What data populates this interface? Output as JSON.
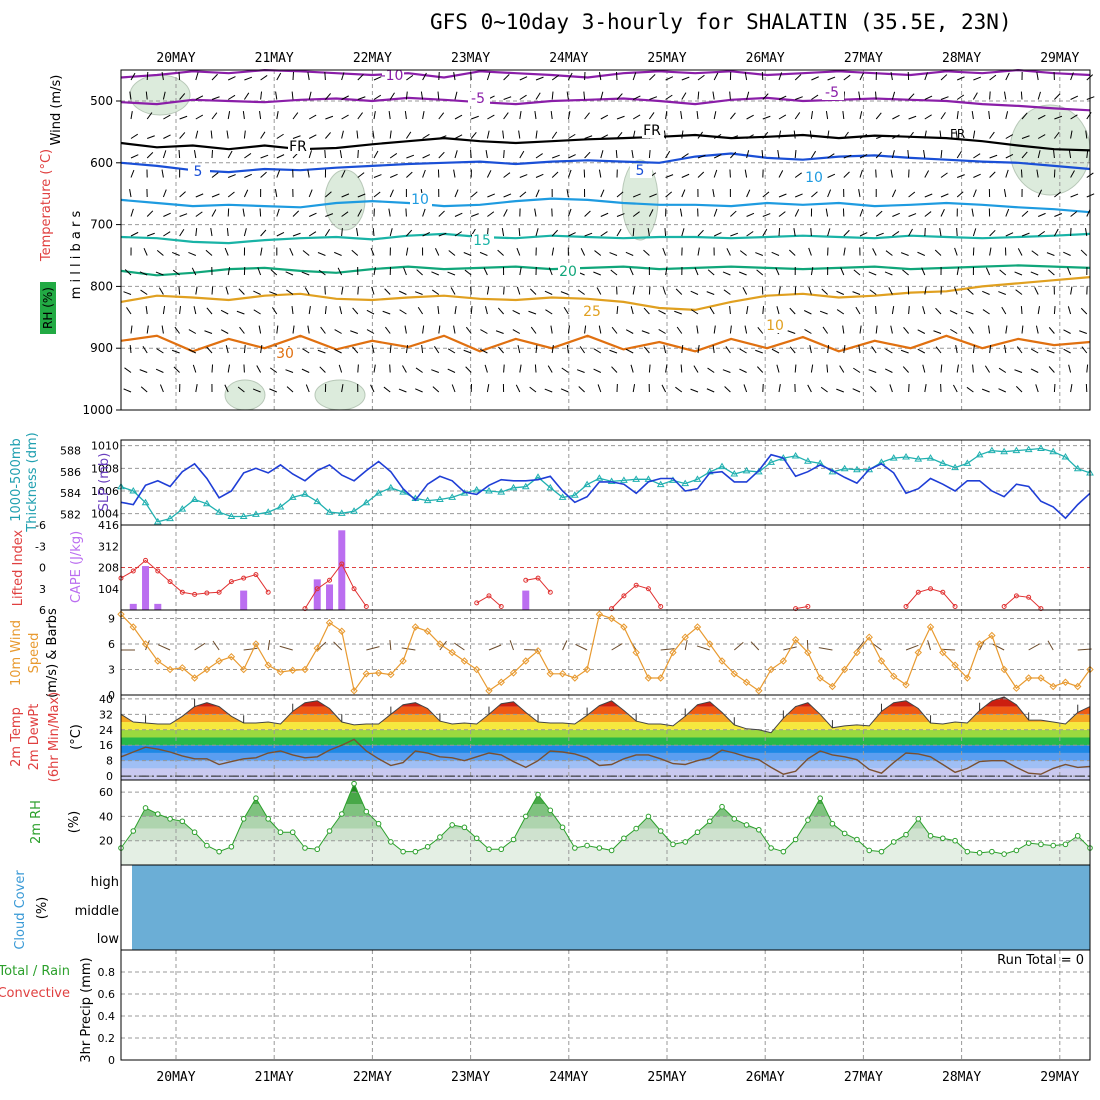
{
  "title": "GFS 0~10day 3-hourly for SHALATIN (35.5E, 23N)",
  "chart_data": [
    {
      "type": "contour",
      "panel": "upper-air",
      "ylabels": [
        "Wind (m/s)",
        "Temperature (°C)",
        "m i l l i b a r s",
        "RH (%)"
      ],
      "yticks": [
        500,
        600,
        700,
        800,
        900,
        1000
      ],
      "contour_labels": [
        "-10",
        "-5",
        "FR",
        "5",
        "10",
        "15",
        "20",
        "25",
        "30",
        "-5",
        "FR",
        "5",
        "10",
        "10"
      ],
      "isotherms": [
        {
          "label": "-10",
          "color": "#8a1ea8",
          "levels": [
            462,
            458,
            452,
            455,
            450,
            452,
            455,
            458,
            455,
            462,
            452,
            455,
            458,
            462,
            455,
            452,
            455,
            452,
            458,
            455,
            452,
            455,
            458,
            452,
            455,
            450,
            455,
            458
          ]
        },
        {
          "label": "-5",
          "color": "#8a1ea8",
          "levels": [
            502,
            505,
            498,
            500,
            502,
            498,
            496,
            500,
            495,
            498,
            502,
            505,
            500,
            498,
            496,
            500,
            505,
            498,
            495,
            500,
            498,
            496,
            498,
            500,
            505,
            508,
            512,
            515
          ]
        },
        {
          "label": "FR",
          "color": "#000000",
          "levels": [
            568,
            575,
            572,
            578,
            572,
            578,
            576,
            570,
            565,
            560,
            565,
            568,
            565,
            562,
            560,
            558,
            555,
            560,
            558,
            555,
            560,
            556,
            558,
            560,
            565,
            572,
            578,
            580
          ]
        },
        {
          "label": "5",
          "color": "#1a4fd6",
          "levels": [
            600,
            605,
            612,
            615,
            610,
            612,
            608,
            605,
            602,
            600,
            598,
            602,
            598,
            596,
            598,
            600,
            590,
            585,
            592,
            595,
            590,
            588,
            592,
            595,
            598,
            600,
            605,
            610
          ]
        },
        {
          "label": "10",
          "color": "#1e9be0",
          "levels": [
            660,
            665,
            670,
            668,
            670,
            672,
            665,
            662,
            665,
            670,
            668,
            662,
            658,
            660,
            665,
            668,
            668,
            670,
            665,
            668,
            665,
            670,
            668,
            665,
            668,
            672,
            675,
            680
          ]
        },
        {
          "label": "15",
          "color": "#19b3a6",
          "levels": [
            720,
            722,
            728,
            730,
            725,
            722,
            720,
            724,
            718,
            715,
            720,
            722,
            718,
            720,
            722,
            720,
            720,
            722,
            720,
            718,
            720,
            722,
            718,
            720,
            722,
            720,
            718,
            715
          ]
        },
        {
          "label": "20",
          "color": "#10a67a",
          "levels": [
            775,
            782,
            778,
            772,
            770,
            775,
            778,
            772,
            768,
            772,
            770,
            768,
            772,
            770,
            768,
            772,
            770,
            768,
            770,
            772,
            770,
            768,
            772,
            770,
            768,
            766,
            768,
            770
          ]
        },
        {
          "label": "25",
          "color": "#e0a020",
          "levels": [
            825,
            815,
            818,
            822,
            815,
            812,
            820,
            822,
            818,
            815,
            820,
            822,
            818,
            820,
            825,
            835,
            838,
            825,
            815,
            812,
            818,
            815,
            810,
            808,
            800,
            795,
            790,
            785
          ]
        },
        {
          "label": "30",
          "color": "#e07010",
          "levels": [
            888,
            880,
            905,
            885,
            900,
            880,
            902,
            888,
            898,
            880,
            905,
            885,
            900,
            880,
            902,
            890,
            905,
            885,
            900,
            882,
            905,
            888,
            900,
            880,
            900,
            885,
            895,
            890
          ]
        }
      ]
    },
    {
      "type": "line",
      "panel": "slp-thickness",
      "ylabels": [
        "SLP (mb)",
        "1000-500mb",
        "Thickness (dm)"
      ],
      "yticks_left": [
        582,
        584,
        586,
        588
      ],
      "yticks_right": [
        1004,
        1006,
        1008,
        1010
      ],
      "series": [
        {
          "name": "SLP",
          "color": "#1f3ed6",
          "ylim": [
            1003,
            1010.5
          ],
          "values": [
            1005.0,
            1004.8,
            1006.5,
            1006.9,
            1006.4,
            1007.7,
            1008.4,
            1007.1,
            1005.4,
            1006.0,
            1007.6,
            1008.0,
            1007.6,
            1008.3,
            1007.5,
            1006.9,
            1007.8,
            1008.3,
            1007.4,
            1006.9,
            1007.8,
            1008.6,
            1007.7,
            1006.2,
            1005.2,
            1006.6,
            1007.3,
            1006.9,
            1005.9,
            1005.7,
            1006.5,
            1007.0,
            1006.9,
            1006.9,
            1007.0,
            1007.3,
            1006.0,
            1005.0,
            1005.5,
            1006.8,
            1006.8,
            1006.6,
            1005.8,
            1006.8,
            1007.1,
            1007.1,
            1006.0,
            1006.2,
            1007.6,
            1007.7,
            1006.8,
            1006.8,
            1007.8,
            1009.2,
            1008.9,
            1007.3,
            1007.7,
            1008.3,
            1007.8,
            1007.2,
            1006.7,
            1007.9,
            1008.4,
            1007.6,
            1005.8,
            1006.2,
            1007.1,
            1006.6,
            1006.0,
            1006.9,
            1006.9,
            1006.0,
            1005.5,
            1006.6,
            1006.4,
            1005.1,
            1004.6,
            1003.6,
            1004.8,
            1005.8
          ]
        },
        {
          "name": "Thickness",
          "color": "#20b0b0",
          "ylim": [
            581,
            589
          ],
          "values": [
            584.6,
            584.2,
            583.1,
            581.3,
            581.6,
            582.5,
            583.4,
            583.0,
            582.2,
            581.8,
            581.8,
            582.0,
            582.2,
            582.7,
            583.6,
            583.9,
            583.2,
            582.2,
            582.1,
            582.3,
            583.1,
            584.0,
            584.5,
            584.1,
            583.5,
            583.3,
            583.4,
            583.6,
            584.0,
            584.3,
            584.2,
            584.1,
            584.5,
            584.6,
            585.5,
            584.5,
            583.6,
            583.8,
            584.8,
            585.4,
            585.1,
            585.2,
            585.3,
            585.3,
            584.8,
            585.2,
            584.9,
            585.3,
            586.0,
            586.5,
            585.8,
            586.1,
            586.0,
            586.9,
            587.3,
            587.5,
            587.0,
            586.8,
            586.0,
            586.3,
            586.2,
            586.2,
            586.9,
            587.3,
            587.4,
            587.2,
            587.3,
            586.8,
            586.4,
            586.8,
            587.6,
            588.0,
            587.9,
            588.0,
            588.1,
            588.2,
            587.9,
            587.4,
            586.3,
            585.9
          ]
        }
      ]
    },
    {
      "type": "bar+line",
      "panel": "lifted-index-cape",
      "ylabels": [
        "Lifted Index",
        "CAPE (J/kg)"
      ],
      "yticks_left": [
        "-6",
        "-3",
        "0",
        "3",
        "6"
      ],
      "yticks_right": [
        "104",
        "208",
        "312",
        "416"
      ],
      "cape": {
        "color": "#bb6ef0",
        "ylim": [
          0,
          416
        ],
        "bars": [
          {
            "i": 1,
            "v": 30
          },
          {
            "i": 2,
            "v": 215
          },
          {
            "i": 3,
            "v": 30
          },
          {
            "i": 10,
            "v": 95
          },
          {
            "i": 16,
            "v": 150
          },
          {
            "i": 17,
            "v": 125
          },
          {
            "i": 18,
            "v": 390
          },
          {
            "i": 33,
            "v": 95
          }
        ]
      },
      "lifted_index": {
        "color": "#e03030",
        "ylim": [
          -6,
          6
        ],
        "values": [
          1.5,
          0.5,
          -1.0,
          0.5,
          2.0,
          3.5,
          3.8,
          3.6,
          3.5,
          2.0,
          1.5,
          1.0,
          3.5,
          null,
          null,
          5.8,
          3.0,
          1.8,
          -0.5,
          3.0,
          5.5,
          null,
          null,
          null,
          null,
          null,
          null,
          null,
          null,
          5.0,
          4.0,
          5.5,
          null,
          1.8,
          1.5,
          3.5,
          null,
          null,
          null,
          null,
          5.8,
          4.0,
          2.5,
          3.0,
          5.5,
          null,
          null,
          null,
          null,
          null,
          null,
          null,
          null,
          null,
          null,
          5.8,
          5.5,
          null,
          null,
          null,
          null,
          null,
          null,
          null,
          5.5,
          3.5,
          3.0,
          3.5,
          5.5,
          null,
          null,
          null,
          5.5,
          4.0,
          4.2,
          5.8,
          null,
          null,
          null,
          null
        ]
      }
    },
    {
      "type": "line",
      "panel": "10m-wind",
      "ylabels": [
        "10m Wind",
        "Speed",
        "(m/s) & Barbs"
      ],
      "yticks": [
        "0",
        "3",
        "6",
        "9"
      ],
      "ylim": [
        0,
        10
      ],
      "series": [
        {
          "name": "10m Wind Speed",
          "color": "#e89a30",
          "values": [
            9.5,
            8.0,
            6.0,
            4.0,
            3.0,
            3.2,
            2.0,
            3.0,
            4.0,
            4.5,
            3.0,
            6.0,
            3.5,
            2.7,
            2.9,
            3.0,
            5.5,
            8.5,
            7.5,
            0.5,
            2.5,
            2.6,
            2.4,
            4.0,
            8.0,
            7.5,
            6.0,
            5.0,
            4.0,
            3.0,
            0.5,
            1.5,
            2.6,
            4.0,
            5.2,
            2.5,
            2.5,
            2.0,
            3.0,
            9.5,
            9.0,
            8.0,
            5.0,
            2.0,
            2.0,
            5.0,
            6.8,
            8.0,
            6.0,
            4.0,
            2.5,
            1.5,
            0.5,
            3.0,
            4.0,
            6.5,
            5.0,
            2.0,
            1.0,
            3.0,
            5.0,
            6.8,
            4.0,
            2.2,
            1.2,
            5.0,
            8.0,
            5.0,
            3.5,
            2.0,
            6.0,
            7.0,
            3.0,
            0.8,
            2.0,
            2.0,
            1.0,
            1.5,
            1.0,
            3.0
          ]
        }
      ]
    },
    {
      "type": "area",
      "panel": "2m-temp",
      "ylabels": [
        "2m Temp",
        "2m DewPt",
        "(6hr Min/Max)",
        "(°C)"
      ],
      "yticks": [
        "0",
        "8",
        "16",
        "24",
        "32",
        "40"
      ],
      "ylim": [
        -2,
        42
      ],
      "series": [
        {
          "name": "2m Temp",
          "values": [
            32.0,
            28.0,
            27.5,
            27.0,
            27.0,
            31.0,
            36.0,
            38.0,
            36.0,
            31.0,
            27.5,
            27.5,
            28.0,
            27.0,
            33.5,
            38.0,
            39.0,
            35.0,
            28.0,
            26.5,
            27.0,
            27.0,
            32.0,
            37.0,
            38.0,
            35.0,
            28.5,
            27.0,
            27.5,
            27.0,
            32.0,
            37.5,
            38.5,
            33.0,
            28.0,
            27.5,
            27.5,
            27.0,
            31.5,
            36.5,
            39.0,
            34.0,
            28.5,
            27.0,
            27.0,
            26.0,
            31.0,
            37.0,
            38.5,
            33.0,
            26.5,
            24.5,
            24.0,
            22.5,
            30.0,
            36.0,
            38.0,
            32.0,
            25.0,
            26.0,
            26.5,
            26.0,
            33.5,
            38.0,
            39.0,
            35.0,
            27.5,
            27.0,
            28.0,
            27.5,
            34.0,
            39.0,
            41.0,
            37.0,
            29.0,
            29.0,
            28.0,
            27.0,
            33.0,
            36.0
          ]
        },
        {
          "name": "2m DewPt",
          "values": [
            10.0,
            12.5,
            15.0,
            14.0,
            12.5,
            10.5,
            9.0,
            9.0,
            6.0,
            7.5,
            9.0,
            9.5,
            12.0,
            13.0,
            11.0,
            9.5,
            10.0,
            13.5,
            16.0,
            19.0,
            13.0,
            9.0,
            5.5,
            7.0,
            13.0,
            12.0,
            10.0,
            9.5,
            8.0,
            10.0,
            12.0,
            11.0,
            7.5,
            4.5,
            8.0,
            13.0,
            12.5,
            11.5,
            9.5,
            5.5,
            6.0,
            9.0,
            11.0,
            11.0,
            9.0,
            6.5,
            6.0,
            8.0,
            9.5,
            13.5,
            12.0,
            10.0,
            8.5,
            4.5,
            1.0,
            2.5,
            9.0,
            13.0,
            11.0,
            10.0,
            8.5,
            3.5,
            1.5,
            7.0,
            12.0,
            11.5,
            10.0,
            6.0,
            2.0,
            4.0,
            7.5,
            8.0,
            8.0,
            4.5,
            1.5,
            1.0,
            4.0,
            6.0,
            4.5,
            5.0
          ]
        }
      ]
    },
    {
      "type": "area",
      "panel": "2m-rh",
      "ylabels": [
        "2m RH",
        "(%)"
      ],
      "yticks": [
        "20",
        "40",
        "60"
      ],
      "ylim": [
        0,
        70
      ],
      "series": [
        {
          "name": "2m RH",
          "color": "#2ca02c",
          "values": [
            14,
            28,
            47,
            42,
            38,
            36,
            27,
            16,
            11,
            15,
            38,
            55,
            38,
            27,
            27,
            14,
            13,
            28,
            42,
            67,
            44,
            34,
            19,
            11,
            11,
            15,
            23,
            33,
            31,
            22,
            13,
            13,
            21,
            40,
            58,
            45,
            31,
            14,
            16,
            14,
            12,
            22,
            30,
            40,
            28,
            17,
            19,
            27,
            36,
            48,
            38,
            33,
            29,
            14,
            11,
            21,
            37,
            55,
            34,
            26,
            21,
            12,
            11,
            19,
            25,
            38,
            24,
            22,
            20,
            11,
            10,
            11,
            9,
            12,
            18,
            17,
            16,
            17,
            24,
            14
          ]
        }
      ]
    },
    {
      "type": "heatmap",
      "panel": "cloud-cover",
      "ylabels": [
        "Cloud Cover",
        "(%)"
      ],
      "categories": [
        "high",
        "middle",
        "low"
      ],
      "fill_color": "#6baed6"
    },
    {
      "type": "bar",
      "panel": "3hr-precip",
      "ylabels": [
        "3hr Precip (mm)",
        "Total / Rain",
        "Convective"
      ],
      "yticks": [
        "0",
        "0.2",
        "0.4",
        "0.6",
        "0.8"
      ],
      "ylim": [
        0,
        1
      ],
      "annotation": "Run Total = 0",
      "values": []
    }
  ],
  "x_axis": {
    "ticks": [
      "20MAY",
      "21MAY",
      "22MAY",
      "23MAY",
      "24MAY",
      "25MAY",
      "26MAY",
      "27MAY",
      "28MAY",
      "29MAY"
    ]
  }
}
